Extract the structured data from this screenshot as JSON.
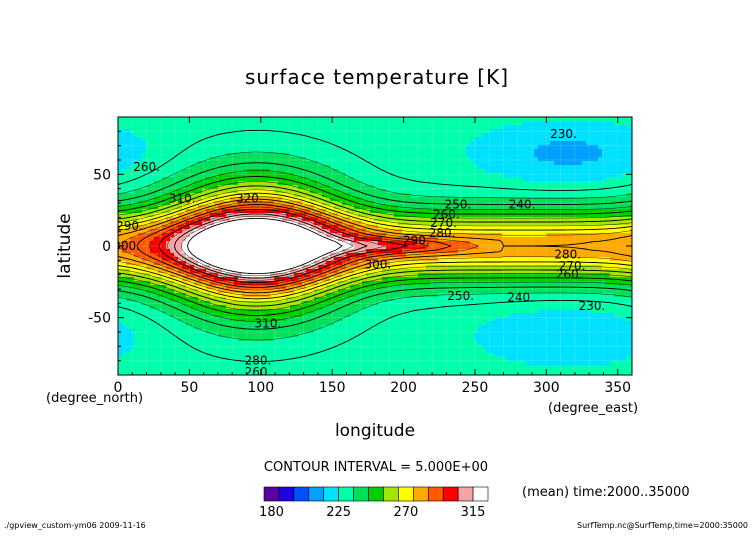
{
  "chart_data": {
    "type": "contour",
    "title": "surface temperature [K]",
    "xlabel": "longitude",
    "ylabel": "latitude",
    "x_unit": "(degree_east)",
    "y_unit": "(degree_north)",
    "xlim": [
      0,
      360
    ],
    "ylim": [
      -90,
      90
    ],
    "x_ticks": [
      0,
      50,
      100,
      150,
      200,
      250,
      300,
      350
    ],
    "y_ticks": [
      -50,
      0,
      50
    ],
    "contour_interval_text": "CONTOUR INTERVAL = 5.000E+00",
    "time_text": "(mean) time:2000..35000",
    "footer_left": "./gpview_custom-ym06  2009-11-16",
    "footer_right": "SurfTemp.nc@SurfTemp,time=2000:35000",
    "colorbar": {
      "min": 175,
      "max": 325,
      "step": 10,
      "tick_labels": [
        "180",
        "225",
        "270",
        "315"
      ],
      "tick_values": [
        180,
        225,
        270,
        315
      ],
      "colors": [
        "#5a00a0",
        "#1e00e6",
        "#0050ff",
        "#00a0ff",
        "#00e1ff",
        "#00ffaa",
        "#00e05a",
        "#00d000",
        "#a0e600",
        "#ffff00",
        "#ffaa00",
        "#ff5a00",
        "#ff0000",
        "#f5a3a3",
        "#ffffff"
      ]
    },
    "contour_labels": [
      {
        "text": "230.",
        "lon": 312,
        "lat": 78
      },
      {
        "text": "240.",
        "lon": 283,
        "lat": 29
      },
      {
        "text": "250.",
        "lon": 238,
        "lat": 29
      },
      {
        "text": "260.",
        "lon": 230,
        "lat": 22
      },
      {
        "text": "270.",
        "lon": 228,
        "lat": 16
      },
      {
        "text": "280.",
        "lon": 227,
        "lat": 9
      },
      {
        "text": "290.",
        "lon": 209,
        "lat": 4
      },
      {
        "text": "300.",
        "lon": 182,
        "lat": -13
      },
      {
        "text": "310.",
        "lon": 45,
        "lat": 33
      },
      {
        "text": "320.",
        "lon": 92,
        "lat": 33
      },
      {
        "text": "260.",
        "lon": 20,
        "lat": 55
      },
      {
        "text": "290.",
        "lon": 8,
        "lat": 14
      },
      {
        "text": "300.",
        "lon": 6,
        "lat": 0
      },
      {
        "text": "280.",
        "lon": 315,
        "lat": -6
      },
      {
        "text": "270.",
        "lon": 318,
        "lat": -14
      },
      {
        "text": "260.",
        "lon": 316,
        "lat": -20
      },
      {
        "text": "250.",
        "lon": 240,
        "lat": -35
      },
      {
        "text": "240.",
        "lon": 282,
        "lat": -36
      },
      {
        "text": "230.",
        "lon": 332,
        "lat": -42
      },
      {
        "text": "310.",
        "lon": 105,
        "lat": -54
      },
      {
        "text": "280.",
        "lon": 98,
        "lat": -80
      },
      {
        "text": "260.",
        "lon": 98,
        "lat": -88
      }
    ]
  }
}
